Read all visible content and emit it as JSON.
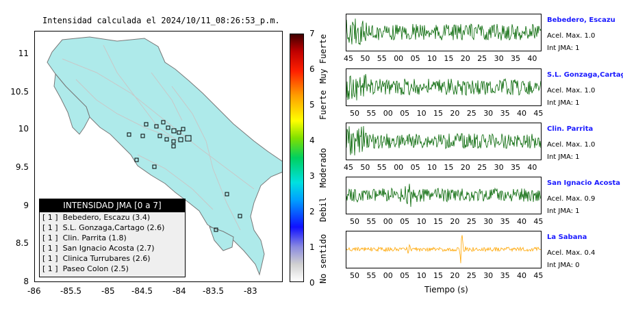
{
  "title": "Intensidad calculada el 2024/10/11_08:26:53_p.m.",
  "map": {
    "y_ticks": [
      "11",
      "10.5",
      "10",
      "9.5",
      "9",
      "8.5",
      "8"
    ],
    "x_ticks": [
      "-86",
      "-85.5",
      "-85",
      "-84.5",
      "-84",
      "-83.5",
      "-83"
    ],
    "land_color": "#aeeaea",
    "ocean_color": "#ffffff",
    "station_marker_color": "#000000"
  },
  "legend": {
    "header": "INTENSIDAD JMA [0 a 7]",
    "rows": [
      {
        "jma": "[ 1 ]",
        "text": "Bebedero, Escazu (3.4)"
      },
      {
        "jma": "[ 1 ]",
        "text": "S.L. Gonzaga,Cartago (2.6)"
      },
      {
        "jma": "[ 1 ]",
        "text": "Clin. Parrita (1.8)"
      },
      {
        "jma": "[ 1 ]",
        "text": "San Ignacio Acosta (2.7)"
      },
      {
        "jma": "[ 1 ]",
        "text": "Clinica Turrubares (2.6)"
      },
      {
        "jma": "[ 1 ]",
        "text": "Paseo Colon (2.5)"
      }
    ]
  },
  "colorbar": {
    "ticks": [
      "7",
      "6",
      "5",
      "4",
      "3",
      "2",
      "1",
      "0"
    ],
    "labels": [
      "Muy Fuerte",
      "Fuerte",
      "Moderado",
      "Debil",
      "No sentido"
    ]
  },
  "traces": {
    "xlabel": "Tiempo (s)",
    "panels": [
      {
        "name": "Bebedero, Escazu",
        "accel": "Acel. Max. 1.0",
        "jma": "Int JMA: 1",
        "color": "#006400",
        "ticks": [
          "45",
          "50",
          "55",
          "00",
          "05",
          "10",
          "15",
          "20",
          "25",
          "30",
          "35",
          "40"
        ]
      },
      {
        "name": "S.L. Gonzaga,Cartago",
        "accel": "Acel. Max. 1.0",
        "jma": "Int JMA: 1",
        "color": "#006400",
        "ticks": [
          "50",
          "55",
          "00",
          "05",
          "10",
          "15",
          "20",
          "25",
          "30",
          "35",
          "40",
          "45"
        ]
      },
      {
        "name": "Clin. Parrita",
        "accel": "Acel. Max. 1.0",
        "jma": "Int JMA: 1",
        "color": "#006400",
        "ticks": [
          "45",
          "50",
          "55",
          "00",
          "05",
          "10",
          "15",
          "20",
          "25",
          "30",
          "35",
          "40"
        ]
      },
      {
        "name": "San Ignacio Acosta",
        "accel": "Acel. Max. 0.9",
        "jma": "Int JMA: 1",
        "color": "#006400",
        "ticks": [
          "50",
          "55",
          "00",
          "05",
          "10",
          "15",
          "20",
          "25",
          "30",
          "35",
          "40",
          "45"
        ]
      },
      {
        "name": "La Sabana",
        "accel": "Acel. Max. 0.4",
        "jma": "Int JMA: 0",
        "color": "#ffa500",
        "ticks": [
          "50",
          "55",
          "00",
          "05",
          "10",
          "15",
          "20",
          "25",
          "30",
          "35",
          "40",
          "45"
        ]
      }
    ]
  }
}
